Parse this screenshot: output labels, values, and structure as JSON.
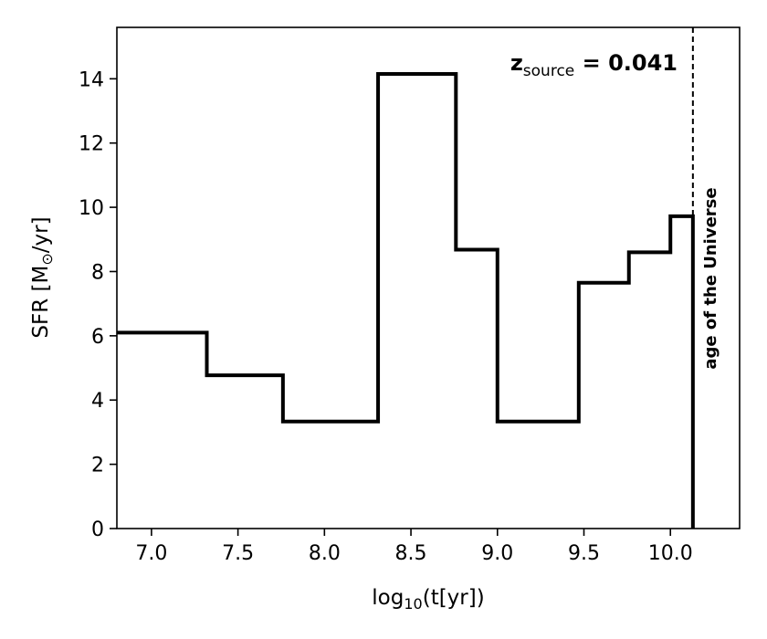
{
  "chart_data": {
    "type": "line",
    "drawstyle": "steps",
    "xlabel": {
      "prefix": "log",
      "sub": "10",
      "suffix": "(t[yr])"
    },
    "ylabel": {
      "prefix": "SFR [M",
      "sub": "⊙",
      "suffix": "/yr]"
    },
    "xlim": [
      6.8,
      10.4
    ],
    "ylim": [
      0,
      15.6
    ],
    "xticks": [
      7.0,
      7.5,
      8.0,
      8.5,
      9.0,
      9.5,
      10.0
    ],
    "xtick_labels": [
      "7.0",
      "7.5",
      "8.0",
      "8.5",
      "9.0",
      "9.5",
      "10.0"
    ],
    "yticks": [
      0,
      2,
      4,
      6,
      8,
      10,
      12,
      14
    ],
    "ytick_labels": [
      "0",
      "2",
      "4",
      "6",
      "8",
      "10",
      "12",
      "14"
    ],
    "grid": false,
    "legend": "none",
    "line_color": "#000000",
    "bins": [
      {
        "x0": 6.8,
        "x1": 7.32,
        "y": 6.1
      },
      {
        "x0": 7.32,
        "x1": 7.76,
        "y": 4.77
      },
      {
        "x0": 7.76,
        "x1": 8.31,
        "y": 3.33
      },
      {
        "x0": 8.31,
        "x1": 8.76,
        "y": 14.15
      },
      {
        "x0": 8.76,
        "x1": 9.0,
        "y": 8.68
      },
      {
        "x0": 9.0,
        "x1": 9.47,
        "y": 3.33
      },
      {
        "x0": 9.47,
        "x1": 9.76,
        "y": 7.65
      },
      {
        "x0": 9.76,
        "x1": 10.0,
        "y": 8.6
      },
      {
        "x0": 10.0,
        "x1": 10.13,
        "y": 9.72
      }
    ],
    "vline": {
      "x": 10.13,
      "style": "dashed",
      "label": "age of the Universe"
    },
    "annotation": {
      "prefix": "z",
      "sub": "source",
      "suffix": " = 0.041"
    }
  }
}
